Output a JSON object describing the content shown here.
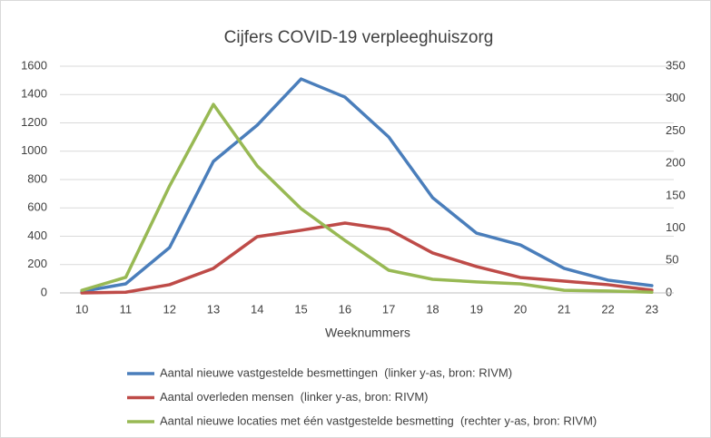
{
  "chart_data": {
    "type": "line",
    "title": "Cijfers COVID-19 verpleeghuiszorg",
    "xlabel": "Weeknummers",
    "categories": [
      10,
      11,
      12,
      13,
      14,
      15,
      16,
      17,
      18,
      19,
      20,
      21,
      22,
      23
    ],
    "series": [
      {
        "name": "Aantal nieuwe vastgestelde besmettingen  (linker y-as, bron: RIVM)",
        "color": "#4a7ebb",
        "values": [
          10,
          64,
          320,
          928,
          1184,
          1510,
          1382,
          1100,
          672,
          422,
          339,
          173,
          90,
          51
        ]
      },
      {
        "name": "Aantal overleden mensen  (linker y-as, bron: RIVM)",
        "color": "#be4b48",
        "values": [
          0,
          5,
          58,
          173,
          397,
          442,
          493,
          448,
          282,
          186,
          109,
          83,
          58,
          19
        ]
      },
      {
        "name": "Aantal nieuwe locaties met één vastgestelde besmetting  (rechter y-as, bron: RIVM)",
        "color": "#98b954",
        "axis": "y2",
        "values": [
          4,
          24,
          165,
          291,
          196,
          130,
          81,
          35,
          21,
          17,
          14,
          4,
          3,
          1
        ]
      }
    ],
    "ylim": [
      0,
      1600
    ],
    "yticks": [
      0,
      200,
      400,
      600,
      800,
      1000,
      1200,
      1400,
      1600
    ],
    "y2lim": [
      0,
      350
    ],
    "y2ticks": [
      0,
      50,
      100,
      150,
      200,
      250,
      300,
      350
    ],
    "grid": true
  }
}
